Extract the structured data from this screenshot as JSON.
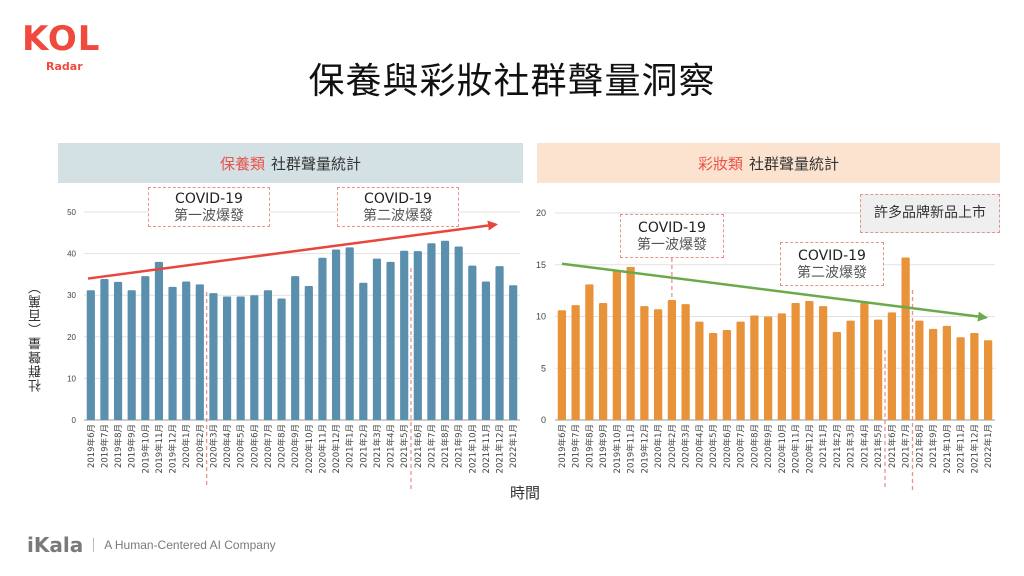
{
  "logo": {
    "main": "KOL",
    "sub": "Radar"
  },
  "page_title": "保養與彩妝社群聲量洞察",
  "footer": {
    "brand": "iKala",
    "tagline": "A Human-Centered AI Company"
  },
  "axis_titles": {
    "y": "社群聲量（百萬）",
    "x": "時間"
  },
  "colors": {
    "skincare_bar": "#5a8fad",
    "makeup_bar": "#e8923a",
    "skincare_header_bg": "#d3e0e4",
    "makeup_header_bg": "#fce3cf",
    "highlight_text": "#e8544a",
    "up_trend_arrow": "#e8463c",
    "down_trend_arrow": "#6aaa4a",
    "annotation_border": "#e8928e"
  },
  "chart_data": [
    {
      "id": "skincare",
      "type": "bar",
      "title_highlight": "保養類",
      "title_rest": "社群聲量統計",
      "xlabel": "時間",
      "ylabel": "社群聲量（百萬）",
      "ylim": [
        0,
        50
      ],
      "yticks": [
        0,
        10,
        20,
        30,
        40,
        50
      ],
      "grid": true,
      "categories": [
        "2019年6月",
        "2019年7月",
        "2019年8月",
        "2019年9月",
        "2019年10月",
        "2019年11月",
        "2019年12月",
        "2020年1月",
        "2020年2月",
        "2020年3月",
        "2020年4月",
        "2020年5月",
        "2020年6月",
        "2020年7月",
        "2020年8月",
        "2020年9月",
        "2020年10月",
        "2020年11月",
        "2020年12月",
        "2021年1月",
        "2021年2月",
        "2021年3月",
        "2021年4月",
        "2021年5月",
        "2021年6月",
        "2021年7月",
        "2021年8月",
        "2021年9月",
        "2021年10月",
        "2021年11月",
        "2021年12月",
        "2022年1月"
      ],
      "values": [
        31.2,
        33.9,
        33.2,
        31.2,
        34.6,
        38.0,
        32.0,
        33.3,
        32.6,
        30.5,
        29.7,
        29.7,
        30.0,
        31.2,
        29.2,
        34.6,
        32.2,
        39.0,
        41.0,
        41.5,
        33.0,
        38.8,
        38.0,
        40.7,
        40.6,
        42.5,
        43.1,
        41.7,
        37.1,
        33.3,
        37.0,
        32.4
      ],
      "trend": {
        "direction": "up",
        "from": 34,
        "to": 47
      },
      "annotations": [
        {
          "line1": "COVID-19",
          "line2": "第一波爆發",
          "between": [
            "2020年2月",
            "2020年3月"
          ]
        },
        {
          "line1": "COVID-19",
          "line2": "第二波爆發",
          "between": [
            "2021年5月",
            "2021年6月"
          ]
        }
      ]
    },
    {
      "id": "makeup",
      "type": "bar",
      "title_highlight": "彩妝類",
      "title_rest": "社群聲量統計",
      "xlabel": "時間",
      "ylabel": "社群聲量（百萬）",
      "ylim": [
        0,
        20
      ],
      "yticks": [
        0,
        5,
        10,
        15,
        20
      ],
      "grid": true,
      "categories": [
        "2019年6月",
        "2019年7月",
        "2019年8月",
        "2019年9月",
        "2019年10月",
        "2019年11月",
        "2019年12月",
        "2020年1月",
        "2020年2月",
        "2020年3月",
        "2020年4月",
        "2020年5月",
        "2020年6月",
        "2020年7月",
        "2020年8月",
        "2020年9月",
        "2020年10月",
        "2020年11月",
        "2020年12月",
        "2021年1月",
        "2021年2月",
        "2021年3月",
        "2021年4月",
        "2021年5月",
        "2021年6月",
        "2021年7月",
        "2021年8月",
        "2021年9月",
        "2021年10月",
        "2021年11月",
        "2021年12月",
        "2022年1月"
      ],
      "values": [
        10.6,
        11.1,
        13.1,
        11.3,
        14.4,
        14.8,
        11.0,
        10.7,
        11.6,
        11.2,
        9.5,
        8.4,
        8.7,
        9.5,
        10.1,
        10.0,
        10.3,
        11.3,
        11.5,
        11.0,
        8.5,
        9.6,
        11.3,
        9.7,
        10.4,
        15.7,
        9.6,
        8.8,
        9.1,
        8.0,
        8.4,
        7.7
      ],
      "trend": {
        "direction": "down",
        "from": 15.1,
        "to": 9.9
      },
      "annotations": [
        {
          "line1": "COVID-19",
          "line2": "第一波爆發",
          "at": "2020年2月"
        },
        {
          "line1": "COVID-19",
          "line2": "第二波爆發",
          "between": [
            "2021年5月",
            "2021年6月"
          ]
        },
        {
          "line1": "許多品牌新品上市",
          "between": [
            "2021年7月",
            "2021年8月"
          ]
        }
      ]
    }
  ]
}
